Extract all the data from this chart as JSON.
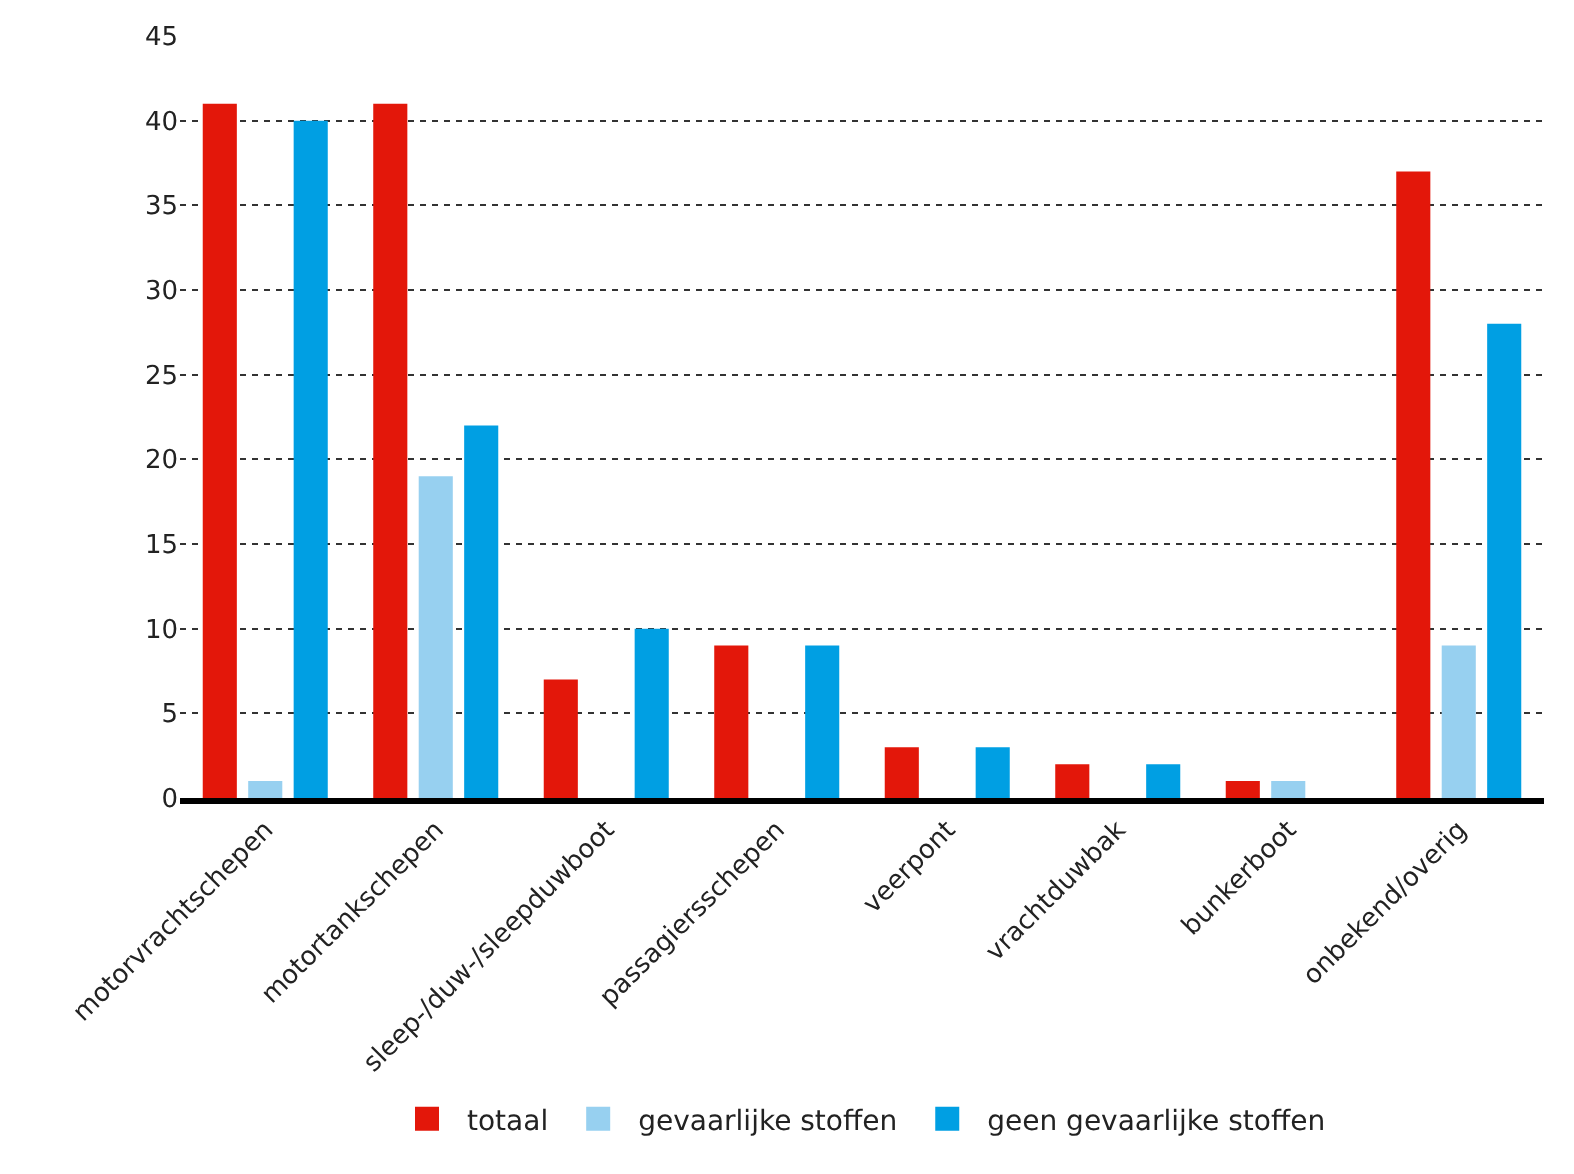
{
  "chart_data": {
    "type": "bar",
    "categories": [
      "motorvrachtschepen",
      "motortankschepen",
      "sleep-/duw-/sleepduwboot",
      "passagiersschepen",
      "veerpont",
      "vrachtduwbak",
      "bunkerboot",
      "onbekend/overig"
    ],
    "series": [
      {
        "name": "totaal",
        "color": "#e3170a",
        "values": [
          41,
          41,
          7,
          9,
          3,
          2,
          1,
          37
        ]
      },
      {
        "name": "gevaarlijke stoffen",
        "color": "#97d0f0",
        "values": [
          1,
          19,
          0,
          0,
          0,
          0,
          1,
          9
        ]
      },
      {
        "name": "geen gevaarlijke stoffen",
        "color": "#009fe3",
        "values": [
          40,
          22,
          10,
          9,
          3,
          2,
          0,
          28
        ]
      }
    ],
    "ylim": [
      0,
      45
    ],
    "yticks": [
      0,
      5,
      10,
      15,
      20,
      25,
      30,
      35,
      40,
      45
    ],
    "grid": "y",
    "legend": "bottom"
  }
}
